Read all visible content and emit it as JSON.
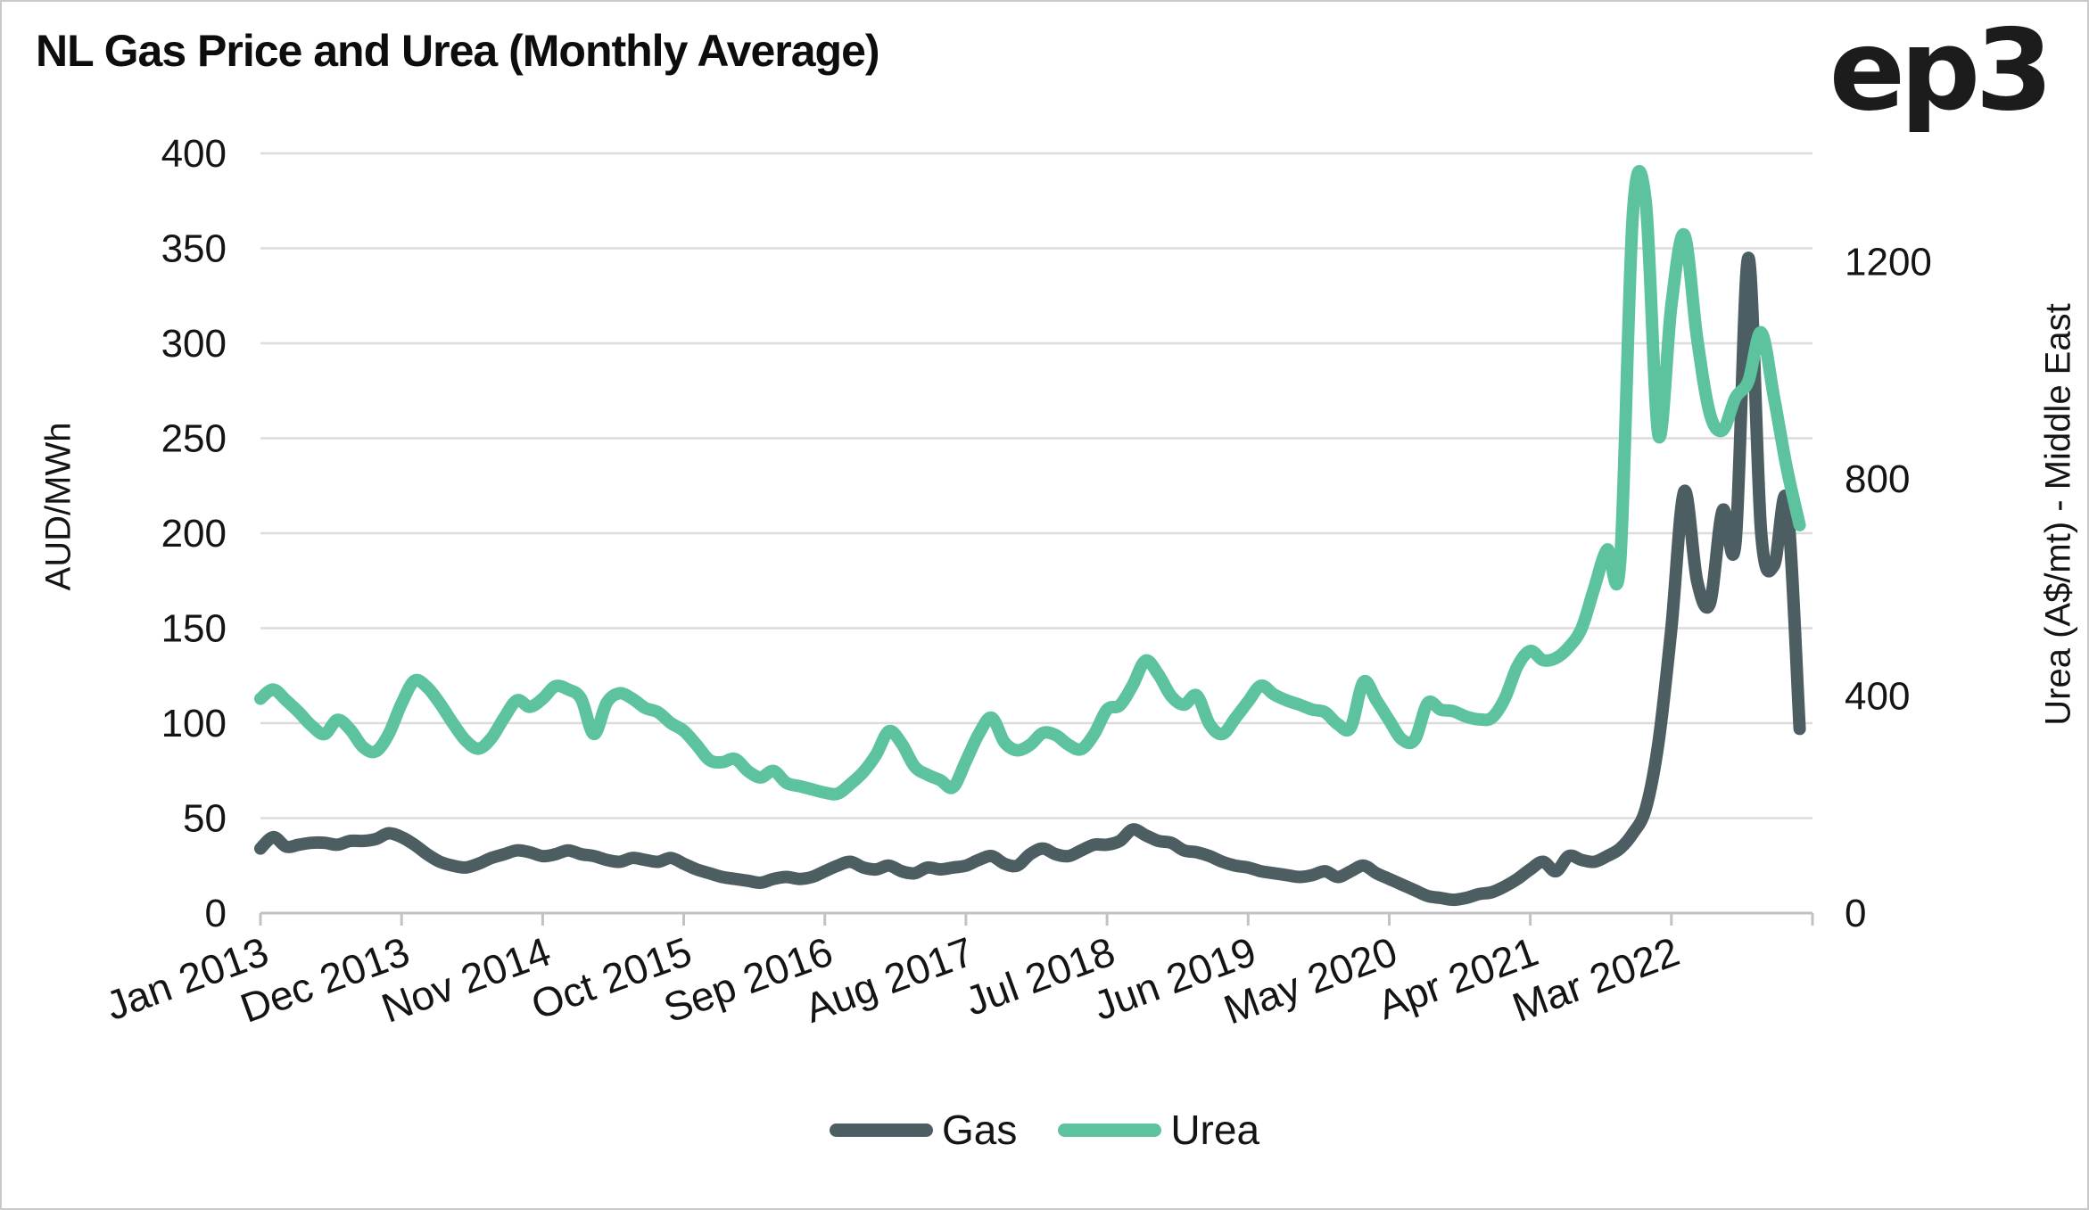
{
  "title": "NL Gas Price and Urea (Monthly Average)",
  "logo_text": "ep3",
  "colors": {
    "gas_line": "#4c5e61",
    "urea_line": "#5cc39e",
    "gridline": "#dcdcdc",
    "axis_line": "#c2c2c2",
    "text": "#141414",
    "frame_border": "#c9c9c9",
    "background": "#ffffff"
  },
  "chart_data": {
    "type": "line",
    "title": "NL Gas Price and Urea (Monthly Average)",
    "x_start_month": "Jan 2013",
    "x_end_month": "Jan 2023",
    "x_tick_interval_months": 11,
    "x_tick_labels": [
      "Jan 2013",
      "Dec 2013",
      "Nov 2014",
      "Oct 2015",
      "Sep 2016",
      "Aug 2017",
      "Jul 2018",
      "Jun 2019",
      "May 2020",
      "Apr 2021",
      "Mar 2022"
    ],
    "x_label_rotation_deg": -20,
    "grid": "horizontal-only",
    "legend_position": "bottom-center",
    "left_axis": {
      "label": "AUD/MWh",
      "min": 0,
      "max": 400,
      "ticks": [
        400,
        350,
        300,
        250,
        200,
        150,
        100,
        50,
        0
      ]
    },
    "right_axis": {
      "label": "Urea (A$/mt) - Middle East",
      "min": 0,
      "max": 1400,
      "ticks": [
        1200,
        800,
        400,
        0
      ]
    },
    "series": [
      {
        "name": "Gas",
        "axis": "left",
        "color": "#4c5e61",
        "values": [
          34,
          40,
          35,
          36,
          37,
          37,
          36,
          38,
          38,
          39,
          42,
          40,
          36,
          31,
          27,
          25,
          24,
          26,
          29,
          31,
          33,
          32,
          30,
          31,
          33,
          31,
          30,
          28,
          27,
          29,
          28,
          27,
          29,
          26,
          23,
          21,
          19,
          18,
          17,
          16,
          18,
          19,
          18,
          19,
          22,
          25,
          27,
          24,
          23,
          25,
          22,
          21,
          24,
          23,
          24,
          25,
          28,
          30,
          26,
          25,
          31,
          34,
          31,
          30,
          33,
          36,
          36,
          38,
          44,
          41,
          38,
          37,
          33,
          32,
          30,
          27,
          25,
          24,
          22,
          21,
          20,
          19,
          20,
          22,
          19,
          22,
          25,
          21,
          18,
          15,
          12,
          9,
          8,
          7,
          8,
          10,
          11,
          14,
          18,
          23,
          27,
          22,
          30,
          28,
          27,
          30,
          34,
          42,
          55,
          90,
          150,
          222,
          175,
          163,
          212,
          195,
          345,
          200,
          183,
          217,
          97
        ]
      },
      {
        "name": "Urea",
        "axis": "right",
        "color": "#5cc39e",
        "values": [
          395,
          412,
          392,
          370,
          345,
          330,
          356,
          338,
          306,
          298,
          330,
          386,
          428,
          416,
          386,
          350,
          318,
          303,
          322,
          360,
          392,
          380,
          395,
          418,
          412,
          395,
          330,
          388,
          405,
          395,
          378,
          370,
          350,
          336,
          310,
          282,
          278,
          284,
          262,
          250,
          262,
          240,
          234,
          228,
          222,
          220,
          238,
          260,
          292,
          335,
          312,
          270,
          255,
          245,
          232,
          280,
          330,
          360,
          315,
          300,
          310,
          332,
          328,
          310,
          302,
          330,
          375,
          383,
          420,
          465,
          440,
          400,
          384,
          401,
          348,
          330,
          359,
          390,
          419,
          403,
          392,
          384,
          375,
          370,
          348,
          342,
          426,
          392,
          355,
          320,
          320,
          387,
          375,
          372,
          362,
          357,
          360,
          395,
          455,
          483,
          466,
          470,
          490,
          525,
          600,
          670,
          645,
          1290,
          1310,
          880,
          1120,
          1250,
          1060,
          920,
          890,
          950,
          980,
          1070,
          950,
          820,
          715
        ]
      }
    ]
  }
}
